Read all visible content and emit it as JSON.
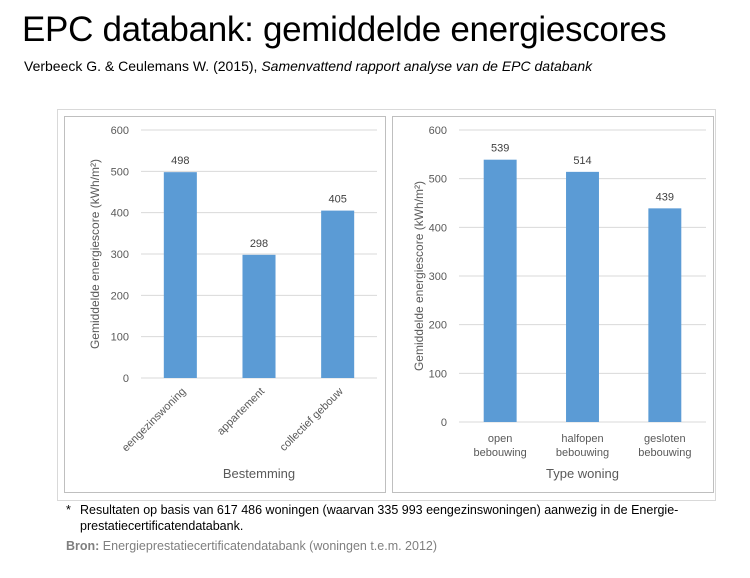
{
  "slide": {
    "title": "EPC databank: gemiddelde energiescores",
    "subtitle_authors": "Verbeeck G. & Ceulemans W. (2015), ",
    "subtitle_report": "Samenvattend rapport analyse van de EPC databank"
  },
  "footnote": {
    "star": "*",
    "text": "Resultaten op basis van 617 486 woningen (waarvan 335 993 eengezinswoningen) aanwezig in de Energie-prestatiecertificatendatabank."
  },
  "source": {
    "label": "Bron:",
    "text": " Energieprestatiecertificatendatabank (woningen t.e.m. 2012)"
  },
  "colors": {
    "bar": "#5b9bd5",
    "grid": "#d9d9d9",
    "axis_text": "#595959"
  },
  "chart_data": [
    {
      "type": "bar",
      "categories": [
        "eengezinswoning",
        "appartement",
        "collectief gebouw"
      ],
      "values": [
        498,
        298,
        405
      ],
      "xlabel": "Bestemming",
      "ylabel": "Gemiddelde energiescore (kWh/m²)",
      "ylim": [
        0,
        600
      ],
      "yticks": [
        0,
        100,
        200,
        300,
        400,
        500,
        600
      ],
      "category_label_rotation": "rotated",
      "grid": true
    },
    {
      "type": "bar",
      "categories": [
        [
          "open",
          "bebouwing"
        ],
        [
          "halfopen",
          "bebouwing"
        ],
        [
          "gesloten",
          "bebouwing"
        ]
      ],
      "values": [
        539,
        514,
        439
      ],
      "xlabel": "Type woning",
      "ylabel": "Gemiddelde energiescore (kWh/m²)",
      "ylim": [
        0,
        600
      ],
      "yticks": [
        0,
        100,
        200,
        300,
        400,
        500,
        600
      ],
      "category_label_rotation": "horizontal",
      "grid": true
    }
  ]
}
